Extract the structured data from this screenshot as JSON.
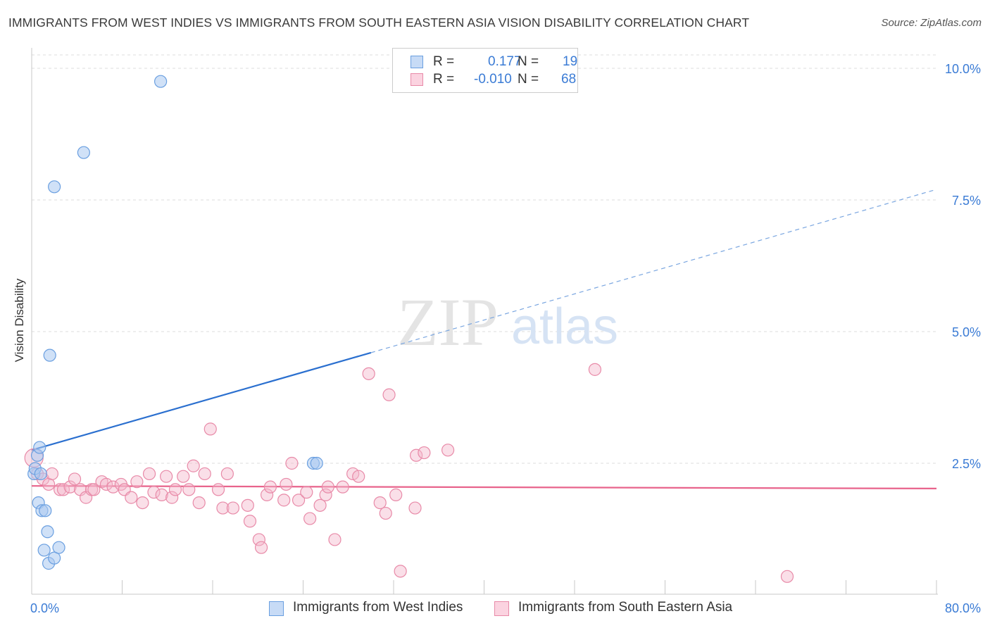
{
  "title": "IMMIGRANTS FROM WEST INDIES VS IMMIGRANTS FROM SOUTH EASTERN ASIA VISION DISABILITY CORRELATION CHART",
  "source": "Source: ZipAtlas.com",
  "watermark": {
    "zip": "ZIP",
    "atlas": "atlas"
  },
  "legend_top": {
    "rows": [
      {
        "r_label": "R =",
        "r_value": "0.177",
        "n_label": "N =",
        "n_value": "19"
      },
      {
        "r_label": "R =",
        "r_value": "-0.010",
        "n_label": "N =",
        "n_value": "68"
      }
    ]
  },
  "legend_bottom": {
    "series1": "Immigrants from West Indies",
    "series2": "Immigrants from South Eastern Asia"
  },
  "colors": {
    "blue_fill": "#aac8f0",
    "blue_stroke": "#6a9fe0",
    "blue_line": "#2a6fcf",
    "pink_fill": "#f5b8cc",
    "pink_stroke": "#e88aa8",
    "pink_line": "#e8648c",
    "axis_label": "#3a7bd5",
    "grid": "#dddddd"
  },
  "chart_data": {
    "type": "scatter",
    "title": "IMMIGRANTS FROM WEST INDIES VS IMMIGRANTS FROM SOUTH EASTERN ASIA VISION DISABILITY CORRELATION CHART",
    "xlabel": "",
    "ylabel": "Vision Disability",
    "xlim": [
      0,
      80
    ],
    "ylim": [
      0,
      10.5
    ],
    "x_tick_labels": [
      "0.0%",
      "80.0%"
    ],
    "y_ticks": [
      2.5,
      5.0,
      7.5,
      10.0
    ],
    "y_tick_labels": [
      "2.5%",
      "5.0%",
      "7.5%",
      "10.0%"
    ],
    "series": [
      {
        "name": "Immigrants from West Indies",
        "R": 0.177,
        "N": 19,
        "points": [
          [
            0.2,
            2.3
          ],
          [
            0.3,
            2.4
          ],
          [
            0.5,
            2.65
          ],
          [
            0.7,
            2.8
          ],
          [
            0.8,
            2.3
          ],
          [
            0.6,
            1.75
          ],
          [
            0.9,
            1.6
          ],
          [
            1.2,
            1.6
          ],
          [
            1.4,
            1.2
          ],
          [
            1.6,
            4.55
          ],
          [
            1.1,
            0.85
          ],
          [
            1.5,
            0.6
          ],
          [
            2.0,
            0.7
          ],
          [
            2.4,
            0.9
          ],
          [
            2.0,
            7.75
          ],
          [
            4.6,
            8.4
          ],
          [
            11.4,
            9.75
          ],
          [
            24.9,
            2.5
          ],
          [
            25.2,
            2.5
          ]
        ],
        "trend": {
          "x": [
            0,
            30
          ],
          "y": [
            2.75,
            4.6
          ],
          "extension_x": [
            30,
            80
          ],
          "extension_y": [
            4.6,
            7.7
          ]
        }
      },
      {
        "name": "Immigrants from South Eastern Asia",
        "R": -0.01,
        "N": 68,
        "points": [
          [
            0.2,
            2.6
          ],
          [
            0.5,
            2.3
          ],
          [
            1.0,
            2.2
          ],
          [
            1.5,
            2.1
          ],
          [
            1.8,
            2.3
          ],
          [
            2.5,
            2.0
          ],
          [
            2.8,
            2.0
          ],
          [
            3.4,
            2.05
          ],
          [
            3.8,
            2.2
          ],
          [
            4.3,
            2.0
          ],
          [
            4.8,
            1.85
          ],
          [
            5.3,
            2.0
          ],
          [
            5.5,
            2.0
          ],
          [
            6.2,
            2.15
          ],
          [
            6.6,
            2.1
          ],
          [
            7.2,
            2.05
          ],
          [
            7.9,
            2.1
          ],
          [
            8.2,
            2.0
          ],
          [
            8.8,
            1.85
          ],
          [
            9.3,
            2.15
          ],
          [
            9.8,
            1.75
          ],
          [
            10.4,
            2.3
          ],
          [
            10.8,
            1.95
          ],
          [
            11.5,
            1.9
          ],
          [
            11.9,
            2.25
          ],
          [
            12.4,
            1.85
          ],
          [
            12.7,
            2.0
          ],
          [
            13.4,
            2.25
          ],
          [
            13.9,
            2.0
          ],
          [
            14.3,
            2.45
          ],
          [
            14.8,
            1.75
          ],
          [
            15.3,
            2.3
          ],
          [
            15.8,
            3.15
          ],
          [
            16.5,
            2.0
          ],
          [
            16.9,
            1.65
          ],
          [
            17.3,
            2.3
          ],
          [
            17.8,
            1.65
          ],
          [
            19.1,
            1.7
          ],
          [
            19.3,
            1.4
          ],
          [
            20.1,
            1.05
          ],
          [
            20.3,
            0.9
          ],
          [
            20.8,
            1.9
          ],
          [
            21.1,
            2.05
          ],
          [
            22.3,
            1.8
          ],
          [
            22.5,
            2.1
          ],
          [
            23.0,
            2.5
          ],
          [
            23.6,
            1.8
          ],
          [
            24.3,
            1.95
          ],
          [
            24.6,
            1.45
          ],
          [
            25.5,
            1.7
          ],
          [
            26.0,
            1.9
          ],
          [
            26.2,
            2.05
          ],
          [
            26.8,
            1.05
          ],
          [
            27.5,
            2.05
          ],
          [
            28.4,
            2.3
          ],
          [
            28.9,
            2.25
          ],
          [
            29.8,
            4.2
          ],
          [
            30.8,
            1.75
          ],
          [
            31.3,
            1.55
          ],
          [
            31.6,
            3.8
          ],
          [
            32.2,
            1.9
          ],
          [
            32.6,
            0.45
          ],
          [
            34.0,
            2.65
          ],
          [
            33.9,
            1.65
          ],
          [
            34.7,
            2.7
          ],
          [
            36.8,
            2.75
          ],
          [
            49.8,
            4.28
          ],
          [
            66.8,
            0.35
          ]
        ],
        "trend": {
          "x": [
            0,
            80
          ],
          "y": [
            2.07,
            2.02
          ]
        }
      }
    ]
  }
}
